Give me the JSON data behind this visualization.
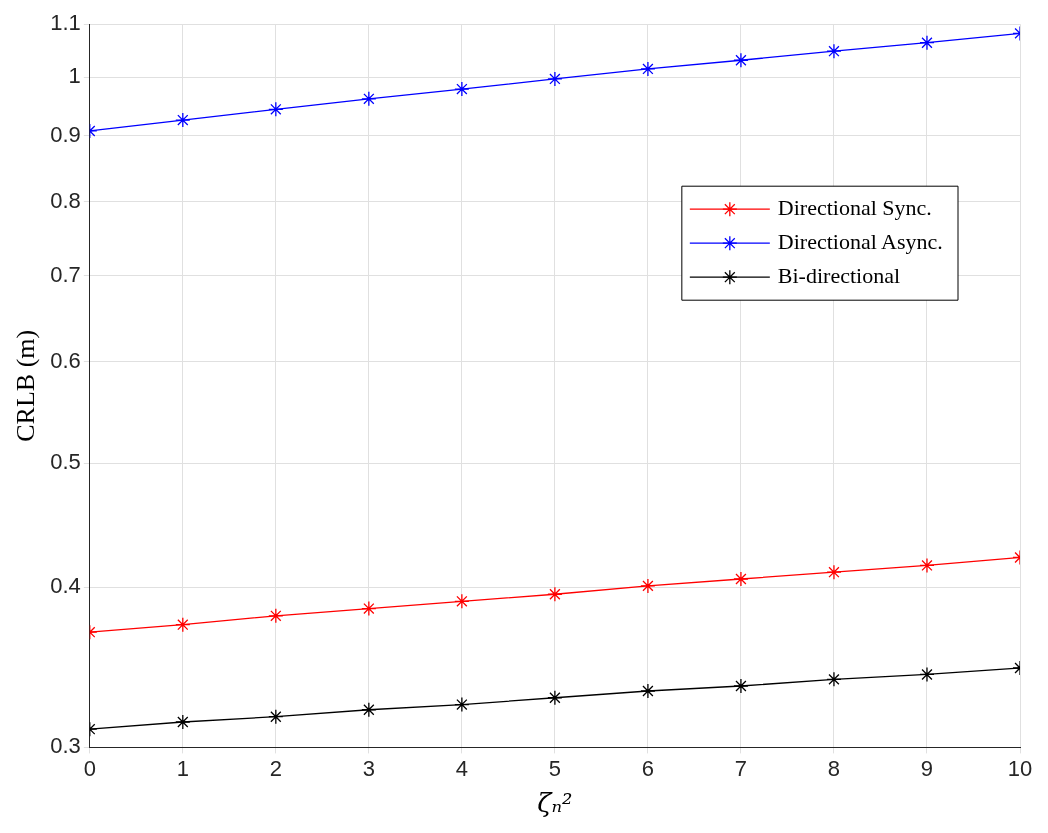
{
  "chart_data": {
    "type": "line",
    "xlabel": "ζₙ²",
    "ylabel": "CRLB (m)",
    "x": [
      0,
      1,
      2,
      3,
      4,
      5,
      6,
      7,
      8,
      9,
      10
    ],
    "series": [
      {
        "name": "Directional Sync.",
        "color": "#ff0000",
        "values": [
          0.369,
          0.374,
          0.38,
          0.385,
          0.39,
          0.395,
          0.401,
          0.406,
          0.411,
          0.416,
          0.422
        ]
      },
      {
        "name": "Directional Async.",
        "color": "#0000ff",
        "values": [
          0.908,
          0.926,
          0.944,
          0.962,
          0.979,
          0.997,
          1.015,
          1.031,
          1.048,
          1.064,
          1.082
        ]
      },
      {
        "name": "Bi-directional",
        "color": "#000000",
        "values": [
          0.31,
          0.314,
          0.317,
          0.321,
          0.324,
          0.328,
          0.332,
          0.335,
          0.339,
          0.342,
          0.346
        ]
      }
    ],
    "xlim": [
      0,
      10
    ],
    "xticks": [
      0,
      1,
      2,
      3,
      4,
      5,
      6,
      7,
      8,
      9,
      10
    ],
    "ylim": [
      0.3,
      1.1
    ],
    "yticks": [
      0.3,
      0.4,
      0.5,
      0.6,
      0.7,
      0.8,
      0.9,
      1,
      1.1
    ],
    "log": "y",
    "grid": true,
    "legend": "top right",
    "marker": "cross",
    "line_style": "solid"
  }
}
